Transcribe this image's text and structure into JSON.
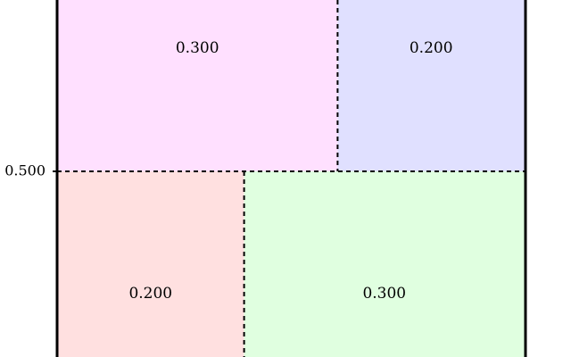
{
  "chart_data": {
    "type": "mosaic",
    "rows": [
      {
        "y_range": [
          0.5,
          1.0
        ],
        "cells": [
          {
            "label": "0.300",
            "value": 0.3,
            "color": "#ffe0ff"
          },
          {
            "label": "0.200",
            "value": 0.2,
            "color": "#e0e0ff"
          }
        ]
      },
      {
        "y_range": [
          0.0,
          0.5
        ],
        "cells": [
          {
            "label": "0.200",
            "value": 0.2,
            "color": "#ffe0e0"
          },
          {
            "label": "0.300",
            "value": 0.3,
            "color": "#e0ffe0"
          }
        ]
      }
    ],
    "y_ticks": [
      {
        "value": 0.5,
        "label": "0.500"
      }
    ],
    "divider_style": "dashed"
  }
}
